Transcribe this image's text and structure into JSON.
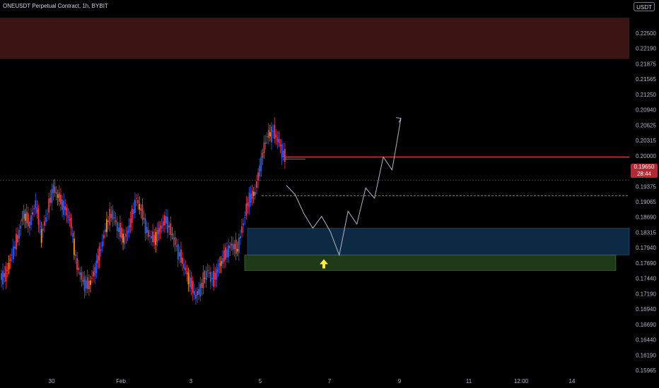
{
  "header": {
    "title": "ONEUSDT Perpetual Contract, 1h, BYBIT",
    "currency_button": "USDT"
  },
  "last_price": {
    "value": "0.19650",
    "countdown": "28:44",
    "color": "#b22833"
  },
  "colors": {
    "background": "#000000",
    "candle_up": "#2962ff",
    "candle_down": "#f23645",
    "candle_alt": "#ff9800",
    "supply_zone": "#3b1414",
    "demand_blue": "#0d2a45",
    "demand_green": "#1e3a18",
    "arrow": "#ffeb3b"
  },
  "chart_data": {
    "type": "candlestick",
    "y_axis_labels": [
      "0.22500",
      "0.22190",
      "0.21875",
      "0.21565",
      "0.21250",
      "0.20940",
      "0.20625",
      "0.20315",
      "0.20000",
      "0.19650",
      "0.19375",
      "0.19065",
      "0.18690",
      "0.18315",
      "0.17940",
      "0.17690",
      "0.17440",
      "0.17190",
      "0.16940",
      "0.16690",
      "0.16440",
      "0.16190",
      "0.15965"
    ],
    "x_axis_labels": [
      "30",
      "Feb",
      "3",
      "5",
      "7",
      "9",
      "11",
      "12:00",
      "14"
    ],
    "ylim": [
      0.15965,
      0.225
    ],
    "zones": [
      {
        "name": "supply-zone",
        "low": 0.22,
        "high": 0.228
      },
      {
        "name": "demand-zone-blue",
        "low": 0.182,
        "high": 0.1872
      },
      {
        "name": "demand-zone-green",
        "low": 0.179,
        "high": 0.182
      }
    ],
    "lines": [
      {
        "name": "resistance-line",
        "value": 0.201,
        "color": "#f23645"
      },
      {
        "name": "support-line",
        "value": 0.1935,
        "color": "#787b86"
      },
      {
        "name": "last-price-line",
        "value": 0.1965,
        "color": "#f23645"
      }
    ],
    "projection": [
      0.1955,
      0.1937,
      0.19,
      0.1872,
      0.1895,
      0.1865,
      0.182,
      0.1905,
      0.188,
      0.195,
      0.193,
      0.201,
      0.1985,
      0.2085
    ],
    "projection_x": [
      "5",
      "",
      "",
      "",
      "",
      "",
      "7",
      "",
      "",
      "",
      "",
      "",
      "",
      "9"
    ],
    "price_series": [
      0.178,
      0.182,
      0.185,
      0.19,
      0.188,
      0.192,
      0.186,
      0.19,
      0.195,
      0.193,
      0.191,
      0.188,
      0.18,
      0.177,
      0.176,
      0.179,
      0.183,
      0.188,
      0.19,
      0.187,
      0.185,
      0.188,
      0.193,
      0.19,
      0.186,
      0.185,
      0.187,
      0.189,
      0.186,
      0.183,
      0.18,
      0.177,
      0.174,
      0.176,
      0.179,
      0.177,
      0.18,
      0.182,
      0.184,
      0.183,
      0.188,
      0.193,
      0.194,
      0.2,
      0.205,
      0.206,
      0.204,
      0.201
    ]
  }
}
